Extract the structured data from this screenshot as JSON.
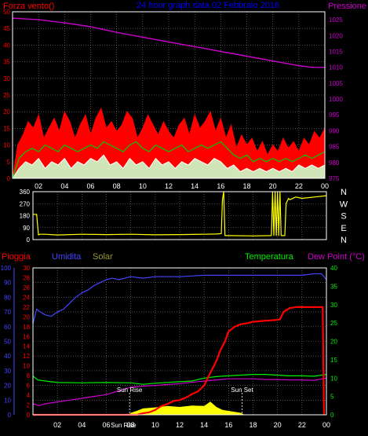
{
  "colors": {
    "background": "#000000",
    "grid": "#808080",
    "wind_gust": "#ff0000",
    "wind_avg": "#00cc00",
    "wind_speed": "#ffffff",
    "wind_fill": "#ccffcc",
    "pressure": "#cc00cc",
    "direction": "#ffff00",
    "rain": "#ff0000",
    "humidity": "#4444ff",
    "solar": "#ffff00",
    "temperature": "#00ee00",
    "dewpoint": "#cc00cc",
    "title": "#0000ff"
  },
  "chart_data": [
    {
      "type": "line",
      "title": "24 hour graph data  02 Febbraio 2016",
      "y_left_label": "Forza vento()",
      "y_right_label": "Pressione",
      "x_ticks": [
        "02",
        "04",
        "06",
        "08",
        "10",
        "12",
        "14",
        "16",
        "18",
        "20",
        "22",
        "00"
      ],
      "y_left_ticks": [
        0,
        5,
        10,
        15,
        20,
        25,
        30,
        35,
        40,
        45,
        50
      ],
      "y_right_ticks": [
        975,
        980,
        985,
        990,
        995,
        1000,
        1005,
        1010,
        1015,
        1020,
        1025
      ],
      "ylim_left": [
        0,
        50
      ],
      "ylim_right": [
        975,
        1027.5
      ],
      "xlim_hours": [
        0,
        24
      ],
      "grid": true,
      "series": [
        {
          "key": "pressure",
          "x_hours": [
            0,
            2,
            4,
            6,
            8,
            10,
            12,
            14,
            16,
            18,
            20,
            22,
            23,
            24
          ],
          "values": [
            1025.5,
            1025,
            1024,
            1022.8,
            1021,
            1019.5,
            1018,
            1016.5,
            1015,
            1013.5,
            1012,
            1010.5,
            1010,
            1010
          ]
        },
        {
          "key": "gust",
          "x_hours": [
            0,
            0.4,
            0.8,
            1.2,
            1.6,
            2,
            2.4,
            2.8,
            3.2,
            3.6,
            4,
            4.4,
            4.8,
            5.2,
            5.6,
            6,
            6.4,
            6.8,
            7.2,
            7.6,
            8,
            8.4,
            8.8,
            9.2,
            9.6,
            10,
            10.4,
            10.8,
            11.2,
            11.6,
            12,
            12.4,
            12.8,
            13.2,
            13.6,
            14,
            14.4,
            14.8,
            15.2,
            15.6,
            16,
            16.4,
            16.8,
            17.2,
            17.6,
            18,
            18.4,
            18.8,
            19.2,
            19.6,
            20,
            20.4,
            20.8,
            21.2,
            21.6,
            22,
            22.4,
            22.8,
            23.2,
            23.6,
            24
          ],
          "values": [
            0,
            10,
            13,
            17,
            15,
            19,
            12,
            15,
            18,
            14,
            20,
            17,
            12,
            16,
            19,
            13,
            18,
            21,
            15,
            17,
            14,
            16,
            20,
            18,
            12,
            15,
            19,
            16,
            13,
            17,
            14,
            12,
            16,
            18,
            13,
            19,
            15,
            17,
            20,
            14,
            18,
            12,
            16,
            9,
            13,
            10,
            12,
            8,
            11,
            7,
            10,
            8,
            12,
            9,
            11,
            8,
            12,
            10,
            14,
            12,
            15
          ]
        },
        {
          "key": "average",
          "x_hours": [
            0,
            0.5,
            1,
            1.5,
            2,
            2.5,
            3,
            3.5,
            4,
            4.5,
            5,
            5.5,
            6,
            6.5,
            7,
            7.5,
            8,
            8.5,
            9,
            9.5,
            10,
            10.5,
            11,
            11.5,
            12,
            12.5,
            13,
            13.5,
            14,
            14.5,
            15,
            15.5,
            16,
            16.5,
            17,
            17.5,
            18,
            18.5,
            19,
            19.5,
            20,
            20.5,
            21,
            21.5,
            22,
            22.5,
            23,
            23.5,
            24
          ],
          "values": [
            0,
            6,
            8,
            9,
            8,
            10,
            9,
            8,
            10,
            9,
            8,
            9,
            10,
            9,
            11,
            10,
            9,
            8,
            10,
            11,
            9,
            8,
            10,
            9,
            8,
            9,
            10,
            8,
            9,
            10,
            9,
            10,
            11,
            9,
            7,
            6,
            7,
            5,
            6,
            5,
            6,
            5,
            6,
            5,
            6,
            7,
            6,
            7,
            8
          ]
        },
        {
          "key": "speed",
          "x_hours": [
            0,
            0.5,
            1,
            1.5,
            2,
            2.5,
            3,
            3.5,
            4,
            4.5,
            5,
            5.5,
            6,
            6.5,
            7,
            7.5,
            8,
            8.5,
            9,
            9.5,
            10,
            10.5,
            11,
            11.5,
            12,
            12.5,
            13,
            13.5,
            14,
            14.5,
            15,
            15.5,
            16,
            16.5,
            17,
            17.5,
            18,
            18.5,
            19,
            19.5,
            20,
            20.5,
            21,
            21.5,
            22,
            22.5,
            23,
            23.5,
            24
          ],
          "values": [
            0,
            3,
            5,
            4,
            6,
            3,
            5,
            4,
            6,
            3,
            5,
            4,
            6,
            5,
            7,
            4,
            5,
            3,
            6,
            4,
            5,
            3,
            6,
            4,
            5,
            3,
            5,
            4,
            6,
            5,
            4,
            6,
            5,
            3,
            4,
            2,
            3,
            2,
            3,
            2,
            3,
            2,
            3,
            2,
            4,
            3,
            4,
            3,
            4
          ]
        }
      ]
    },
    {
      "type": "line",
      "title": "",
      "y_left_ticks": [
        0,
        90,
        180,
        270,
        360
      ],
      "y_right_labels": [
        "N",
        "W",
        "S",
        "E",
        "N"
      ],
      "ylim_left": [
        0,
        360
      ],
      "xlim_hours": [
        0,
        24
      ],
      "grid": true,
      "series": [
        {
          "key": "direction",
          "x_hours": [
            0,
            0.15,
            0.3,
            0.45,
            0.55,
            1,
            2,
            4,
            6,
            8,
            10,
            12,
            14,
            15,
            15.4,
            15.5,
            15.6,
            15.7,
            15.8,
            16,
            18,
            19.5,
            19.6,
            19.7,
            19.8,
            19.9,
            20,
            20.1,
            20.2,
            20.3,
            20.6,
            20.7,
            20.8,
            20.9,
            21,
            21.5,
            22,
            23,
            24
          ],
          "values": [
            190,
            190,
            190,
            35,
            40,
            40,
            35,
            40,
            38,
            40,
            36,
            38,
            40,
            42,
            45,
            300,
            360,
            30,
            30,
            30,
            28,
            30,
            360,
            30,
            360,
            30,
            360,
            30,
            360,
            30,
            30,
            270,
            290,
            310,
            300,
            320,
            310,
            320,
            330
          ]
        }
      ]
    },
    {
      "type": "line",
      "title": "",
      "legend": [
        "Pioggia",
        "Umidita",
        "Solar",
        "Temperatura",
        "Dew Point (°C)"
      ],
      "x_ticks": [
        "02",
        "04",
        "06",
        "08",
        "10",
        "12",
        "14",
        "16",
        "18",
        "20",
        "22",
        "00"
      ],
      "y_left1_ticks": [
        0,
        10,
        20,
        30,
        40,
        50,
        60,
        70,
        80,
        90,
        100
      ],
      "y_left2_ticks": [
        0,
        2,
        4,
        6,
        8,
        10,
        12,
        14,
        16,
        18,
        20,
        22,
        24,
        26,
        28,
        30
      ],
      "y_right_ticks": [
        0,
        5,
        10,
        15,
        20,
        25,
        30,
        35,
        40
      ],
      "ylim_humidity": [
        0,
        100
      ],
      "ylim_rain": [
        0,
        30
      ],
      "ylim_temp": [
        0,
        40
      ],
      "xlim_hours": [
        0,
        24
      ],
      "grid": true,
      "annotations": [
        {
          "label": "Sun Rise",
          "x_hour": 7.9
        },
        {
          "label": "Sun Set",
          "x_hour": 17.1
        },
        {
          "label": "Sun Rise",
          "x_hour": 7.4
        }
      ],
      "series": [
        {
          "key": "humidity",
          "x_hours": [
            0,
            0.3,
            0.6,
            1,
            1.5,
            2,
            2.5,
            3,
            3.5,
            4,
            4.5,
            5,
            5.5,
            6,
            6.5,
            7,
            7.5,
            8,
            9,
            10,
            12,
            14,
            16,
            18,
            20,
            22,
            23,
            23.6,
            24
          ],
          "values": [
            62,
            72,
            70,
            68,
            67,
            70,
            72,
            76,
            80,
            83,
            85,
            88,
            90,
            92,
            93,
            92,
            93,
            94,
            93,
            94,
            94,
            95,
            95,
            95,
            95,
            95,
            96,
            96,
            92
          ]
        },
        {
          "key": "temperature",
          "x_hours": [
            0,
            0.4,
            1,
            2,
            4,
            6,
            8,
            9,
            10,
            12,
            13,
            14,
            15,
            16,
            17,
            18,
            19,
            20,
            21,
            22,
            23,
            24
          ],
          "values": [
            10.5,
            9.5,
            9.2,
            8.8,
            8.7,
            8.8,
            8.7,
            8.3,
            8.6,
            9.0,
            9.2,
            10.0,
            10.4,
            10.6,
            10.8,
            11.0,
            11.0,
            10.8,
            10.6,
            10.6,
            10.5,
            11.0
          ]
        },
        {
          "key": "dewpoint",
          "x_hours": [
            0,
            0.5,
            1,
            2,
            3,
            4,
            5,
            6,
            7,
            8,
            9,
            10,
            12,
            14,
            15,
            16,
            17,
            18,
            19,
            20,
            21,
            22,
            23,
            24
          ],
          "values": [
            3.0,
            2.5,
            3.0,
            3.5,
            4.0,
            4.5,
            5.0,
            5.5,
            6.5,
            7.5,
            7.8,
            8.0,
            8.5,
            9.2,
            9.5,
            9.8,
            9.8,
            9.8,
            9.6,
            9.6,
            9.5,
            9.5,
            9.4,
            10.0
          ]
        },
        {
          "key": "rain",
          "x_hours": [
            0,
            8.5,
            9,
            9.5,
            10,
            10.5,
            11,
            11.5,
            12,
            12.5,
            13,
            13.5,
            14,
            14.2,
            14.5,
            15,
            15.3,
            15.7,
            16,
            16.5,
            17,
            17.5,
            18,
            18.5,
            19,
            20,
            20.2,
            20.5,
            21,
            21.5,
            22,
            23,
            23.7,
            23.8
          ],
          "values": [
            0,
            0,
            0.3,
            0.5,
            1,
            1.8,
            2.2,
            2.8,
            3,
            3.5,
            4.2,
            4.8,
            6,
            7,
            8.5,
            11,
            13,
            15,
            17,
            18,
            18.5,
            18.7,
            19,
            19.1,
            19.2,
            19.4,
            19.5,
            21,
            21.8,
            22,
            22,
            22,
            22,
            0
          ]
        },
        {
          "key": "solar",
          "x_hours": [
            0,
            7.8,
            8,
            8.5,
            9,
            10,
            11,
            12,
            13,
            14,
            14.5,
            15,
            15.5,
            16,
            17,
            17.3,
            24
          ],
          "values": [
            0,
            0,
            0.4,
            0.8,
            1.3,
            1.5,
            1.8,
            1.6,
            1.9,
            1.8,
            2.7,
            1.6,
            1.0,
            0.8,
            0.4,
            0,
            0
          ]
        }
      ]
    }
  ]
}
